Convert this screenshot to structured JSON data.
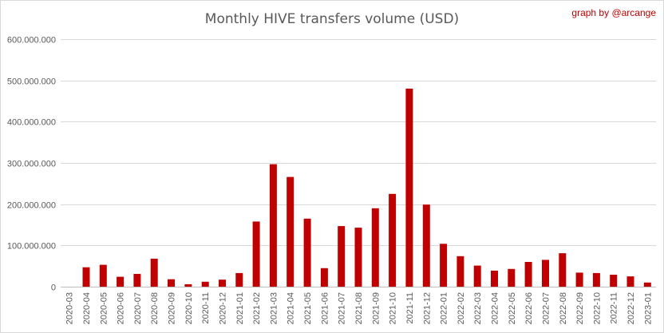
{
  "chart_data": {
    "type": "bar",
    "title": "Monthly HIVE transfers volume (USD)",
    "annotation": "graph by @arcange",
    "xlabel": "",
    "ylabel": "",
    "ylim": [
      0,
      600000000
    ],
    "y_ticks": [
      0,
      100000000,
      200000000,
      300000000,
      400000000,
      500000000,
      600000000
    ],
    "y_tick_labels": [
      "0",
      "100.000.000",
      "200.000.000",
      "300.000.000",
      "400.000.000",
      "500.000.000",
      "600.000.000"
    ],
    "grid": true,
    "legend": "none",
    "bar_color": "#c00000",
    "annotation_color": "#c00000",
    "categories": [
      "2020-03",
      "2020-04",
      "2020-05",
      "2020-06",
      "2020-07",
      "2020-08",
      "2020-09",
      "2020-10",
      "2020-11",
      "2020-12",
      "2021-01",
      "2021-02",
      "2021-03",
      "2021-04",
      "2021-05",
      "2021-06",
      "2021-07",
      "2021-08",
      "2021-09",
      "2021-10",
      "2021-11",
      "2021-12",
      "2022-01",
      "2022-02",
      "2022-03",
      "2022-04",
      "2022-05",
      "2022-06",
      "2022-07",
      "2022-08",
      "2022-09",
      "2022-10",
      "2022-11",
      "2022-12",
      "2023-01"
    ],
    "values": [
      0,
      47000000,
      53000000,
      24000000,
      31000000,
      68000000,
      18000000,
      6000000,
      12000000,
      17000000,
      33000000,
      158000000,
      297000000,
      266000000,
      165000000,
      45000000,
      147000000,
      143000000,
      190000000,
      225000000,
      480000000,
      199000000,
      104000000,
      74000000,
      51000000,
      39000000,
      43000000,
      60000000,
      65000000,
      81000000,
      34000000,
      33000000,
      29000000,
      25000000,
      10000000
    ]
  }
}
